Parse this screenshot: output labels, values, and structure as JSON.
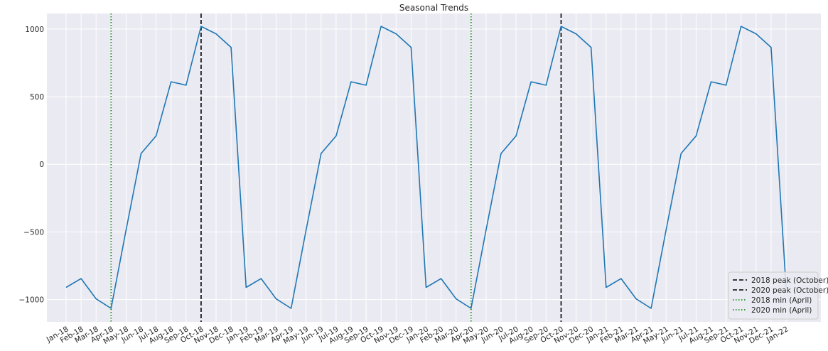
{
  "chart_data": {
    "type": "line",
    "title": "Seasonal Trends",
    "xlabel": "",
    "ylabel": "",
    "ylim": [
      -1165,
      1115
    ],
    "grid": true,
    "legend_placement": "bottom-right",
    "y_ticks": [
      1000,
      500,
      0,
      -500,
      -1000
    ],
    "y_tick_labels": [
      "1000",
      "500",
      "0",
      "−500",
      "−1000"
    ],
    "x": [
      "Jan-18",
      "Feb-18",
      "Mar-18",
      "Apr-18",
      "May-18",
      "Jun-18",
      "Jul-18",
      "Aug-18",
      "Sep-18",
      "Oct-18",
      "Nov-18",
      "Dec-18",
      "Jan-19",
      "Feb-19",
      "Mar-19",
      "Apr-19",
      "May-19",
      "Jun-19",
      "Jul-19",
      "Aug-19",
      "Sep-19",
      "Oct-19",
      "Nov-19",
      "Dec-19",
      "Jan-20",
      "Feb-20",
      "Mar-20",
      "Apr-20",
      "May-20",
      "Jun-20",
      "Jul-20",
      "Aug-20",
      "Sep-20",
      "Oct-20",
      "Nov-20",
      "Dec-20",
      "Jan-21",
      "Feb-21",
      "Mar-21",
      "Apr-21",
      "May-21",
      "Jun-21",
      "Jul-21",
      "Aug-21",
      "Sep-21",
      "Oct-21",
      "Nov-21",
      "Dec-21",
      "Jan-22"
    ],
    "series": [
      {
        "color": "#1f77b4",
        "values": [
          -910,
          -845,
          -995,
          -1065,
          -485,
          80,
          210,
          610,
          585,
          1020,
          965,
          865,
          -910,
          -845,
          -995,
          -1065,
          -485,
          80,
          210,
          610,
          585,
          1020,
          965,
          865,
          -910,
          -845,
          -995,
          -1065,
          -485,
          80,
          210,
          610,
          585,
          1020,
          965,
          865,
          -910,
          -845,
          -995,
          -1065,
          -485,
          80,
          210,
          610,
          585,
          1020,
          965,
          865,
          -910
        ]
      }
    ],
    "vlines": [
      {
        "label": "2018 peak (October)",
        "at": "Oct-18",
        "style": "dashed",
        "color": "#000000"
      },
      {
        "label": "2020 peak (October)",
        "at": "Oct-20",
        "style": "dashed",
        "color": "#000000"
      },
      {
        "label": "2018 min (April)",
        "at": "Apr-18",
        "style": "dotted",
        "color": "#008000"
      },
      {
        "label": "2020 min (April)",
        "at": "Apr-20",
        "style": "dotted",
        "color": "#008000"
      }
    ],
    "colors": {
      "plot_background": "#eaeaf2",
      "grid": "#ffffff"
    }
  }
}
